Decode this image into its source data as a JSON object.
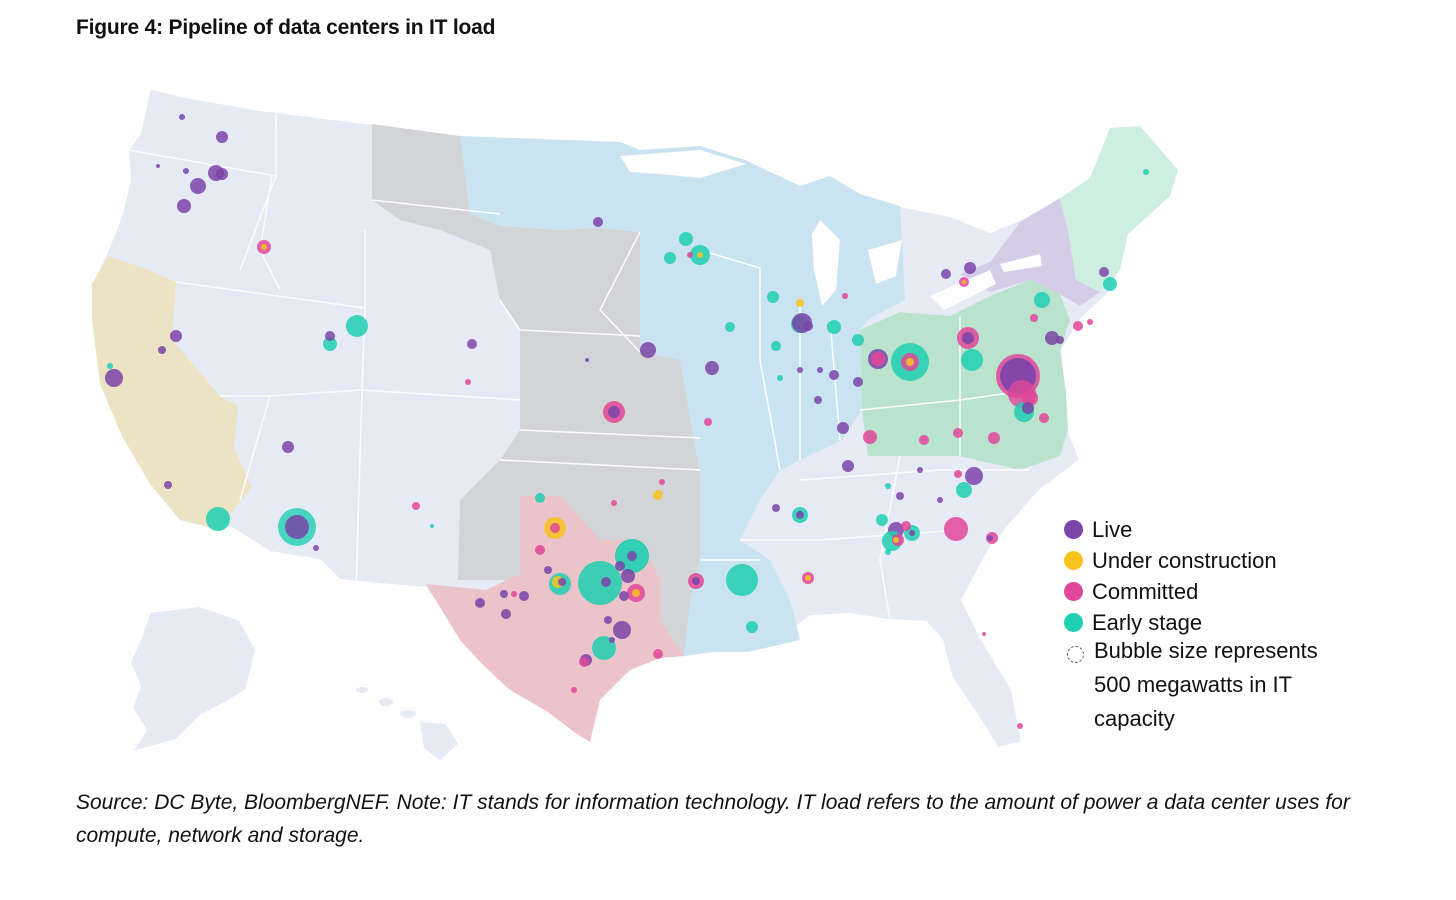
{
  "title": "Figure 4: Pipeline of data centers in IT load",
  "legend": {
    "items": [
      {
        "label": "Live",
        "color": "#7a44a8"
      },
      {
        "label": "Under construction",
        "color": "#f7c31e"
      },
      {
        "label": "Committed",
        "color": "#e0479a"
      },
      {
        "label": "Early stage",
        "color": "#1fcfb1"
      }
    ],
    "size_note": "Bubble size represents 500 megawatts in IT capacity"
  },
  "source": "Source: DC Byte, BloombergNEF. Note: IT stands for information technology. IT load refers to the amount of power a data center uses for compute, network and storage.",
  "region_colors": {
    "default": "#e6eaf5",
    "california": "#ebe3c4",
    "midwest": "#c9e3f1",
    "plains": "#d3d4d8",
    "texas": "#ecc3c8",
    "pjm": "#b9e3cd",
    "new_york": "#d5cde8",
    "new_england": "#cdeee0"
  }
}
